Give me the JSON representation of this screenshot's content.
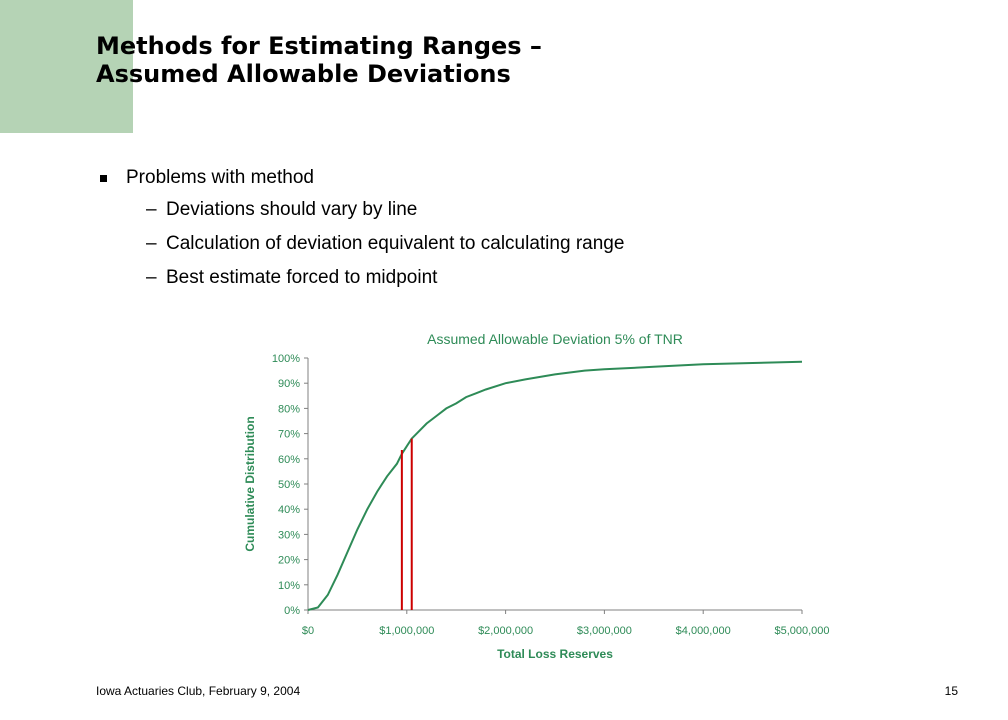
{
  "slide": {
    "title_line1": "Methods for Estimating Ranges –",
    "title_line2": "Assumed Allowable Deviations",
    "bullet_main": "Problems with method",
    "sub_bullets": [
      "Deviations should vary by line",
      "Calculation of deviation equivalent to calculating range",
      "Best estimate forced to midpoint"
    ],
    "sub_bullet_marker": "–",
    "footer_left": "Iowa Actuaries Club, February 9, 2004",
    "page_number": "15"
  },
  "colors": {
    "accent_block": "#b5d3b5",
    "chart_text": "#2e8b57",
    "curve": "#2e8b57",
    "markers": "#cc0000"
  },
  "chart_data": {
    "type": "line",
    "title": "Assumed Allowable Deviation 5% of TNR",
    "xlabel": "Total Loss Reserves",
    "ylabel": "Cumulative Distribution",
    "xlim": [
      0,
      5000000
    ],
    "ylim": [
      0,
      1
    ],
    "x_ticks": [
      0,
      1000000,
      2000000,
      3000000,
      4000000,
      5000000
    ],
    "x_tick_labels": [
      "$0",
      "$1,000,000",
      "$2,000,000",
      "$3,000,000",
      "$4,000,000",
      "$5,000,000"
    ],
    "y_ticks": [
      0,
      0.1,
      0.2,
      0.3,
      0.4,
      0.5,
      0.6,
      0.7,
      0.8,
      0.9,
      1.0
    ],
    "y_tick_labels": [
      "0%",
      "10%",
      "20%",
      "30%",
      "40%",
      "50%",
      "60%",
      "70%",
      "80%",
      "90%",
      "100%"
    ],
    "grid": false,
    "legend": "none",
    "series": [
      {
        "x": [
          0,
          100000,
          200000,
          300000,
          400000,
          500000,
          600000,
          700000,
          800000,
          900000,
          950000,
          1000000,
          1050000,
          1100000,
          1200000,
          1300000,
          1400000,
          1500000,
          1600000,
          1700000,
          1800000,
          2000000,
          2200000,
          2500000,
          2800000,
          3000000,
          3500000,
          4000000,
          4500000,
          5000000
        ],
        "y": [
          0,
          0.01,
          0.06,
          0.14,
          0.23,
          0.32,
          0.4,
          0.47,
          0.53,
          0.58,
          0.62,
          0.65,
          0.68,
          0.7,
          0.74,
          0.77,
          0.8,
          0.82,
          0.845,
          0.86,
          0.875,
          0.9,
          0.915,
          0.935,
          0.95,
          0.955,
          0.965,
          0.975,
          0.98,
          0.985
        ]
      }
    ],
    "markers": [
      {
        "x": 950000,
        "y": 0.635
      },
      {
        "x": 1050000,
        "y": 0.68
      }
    ]
  }
}
